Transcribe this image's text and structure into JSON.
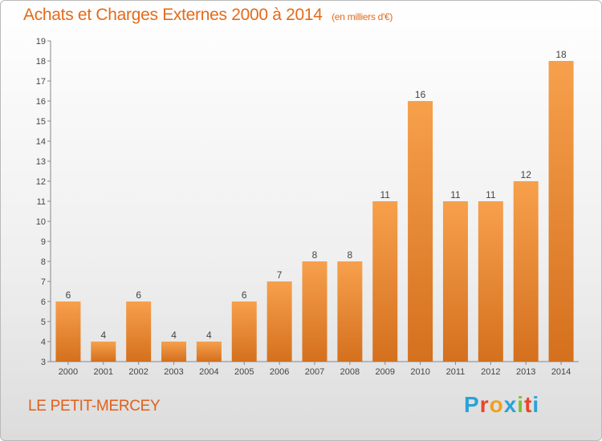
{
  "header": {
    "title": "Achats et Charges Externes 2000 à 2014",
    "unit_note": "(en milliers d'€)"
  },
  "footer": {
    "commune": "LE PETIT-MERCEY",
    "logo_text": "Proxiti",
    "logo_colors": [
      "#2aa2d8",
      "#e8462a",
      "#f0a020",
      "#2aa2d8",
      "#7cc03a",
      "#e8462a",
      "#2aa2d8"
    ]
  },
  "chart_data": {
    "type": "bar",
    "title": "Achats et Charges Externes 2000 à 2014",
    "subtitle": "(en milliers d'€)",
    "categories": [
      "2000",
      "2001",
      "2002",
      "2003",
      "2004",
      "2005",
      "2006",
      "2007",
      "2008",
      "2009",
      "2010",
      "2011",
      "2012",
      "2013",
      "2014"
    ],
    "values": [
      6,
      4,
      6,
      4,
      4,
      6,
      7,
      8,
      8,
      11,
      16,
      11,
      11,
      12,
      18
    ],
    "xlabel": "",
    "ylabel": "",
    "ylim": [
      3,
      19
    ],
    "yticks": [
      3,
      4,
      5,
      6,
      7,
      8,
      9,
      10,
      11,
      12,
      13,
      14,
      15,
      16,
      17,
      18,
      19
    ],
    "grid": false,
    "bar_color_top": "#f7a04c",
    "bar_color_bottom": "#d4701e"
  }
}
